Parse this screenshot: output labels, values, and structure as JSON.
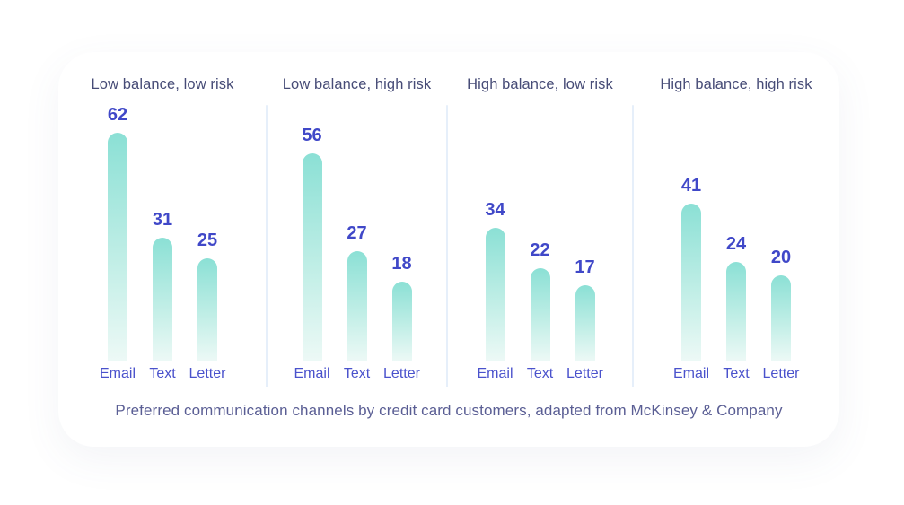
{
  "colors": {
    "bar_top": "#8be0d5",
    "bar_mid": "#c0eee6",
    "bar_bottom": "#edf9f6",
    "value_text": "#4048c8",
    "label_text": "#4a52cc",
    "title_text": "#474c77",
    "caption_text": "#5a5e94",
    "divider": "#e6effa",
    "card_bg": "#ffffff"
  },
  "chart_data": {
    "type": "bar",
    "categories": [
      "Email",
      "Text",
      "Letter"
    ],
    "panels": [
      {
        "title": "Low balance, low risk",
        "values": [
          62,
          31,
          25
        ]
      },
      {
        "title": "Low balance, high risk",
        "values": [
          56,
          27,
          18
        ]
      },
      {
        "title": "High balance, low risk",
        "values": [
          34,
          22,
          17
        ]
      },
      {
        "title": "High balance, high risk",
        "values": [
          41,
          24,
          20
        ]
      }
    ],
    "caption": "Preferred communication channels by credit card customers, adapted from McKinsey & Company",
    "value_labels_shown": true,
    "axes_shown": false,
    "grid": false,
    "legend": "none",
    "ylim": [
      0,
      62
    ]
  }
}
